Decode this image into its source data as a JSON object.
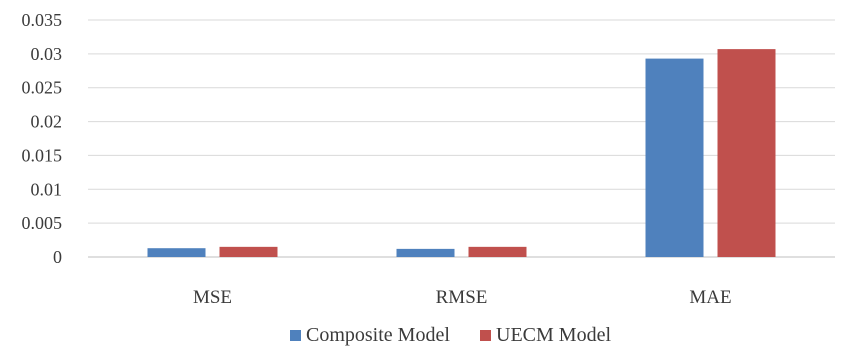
{
  "chart_data": {
    "type": "bar",
    "categories": [
      "MSE",
      "RMSE",
      "MAE"
    ],
    "series": [
      {
        "name": "Composite Model",
        "color": "#4f81bd",
        "values": [
          0.0013,
          0.0012,
          0.0293
        ]
      },
      {
        "name": "UECM Model",
        "color": "#c0504d",
        "values": [
          0.0015,
          0.0015,
          0.0307
        ]
      }
    ],
    "yticks": [
      "0",
      "0.005",
      "0.01",
      "0.015",
      "0.02",
      "0.025",
      "0.03",
      "0.035"
    ],
    "ylim": [
      0,
      0.035
    ],
    "grid": true,
    "legend_position": "bottom"
  }
}
